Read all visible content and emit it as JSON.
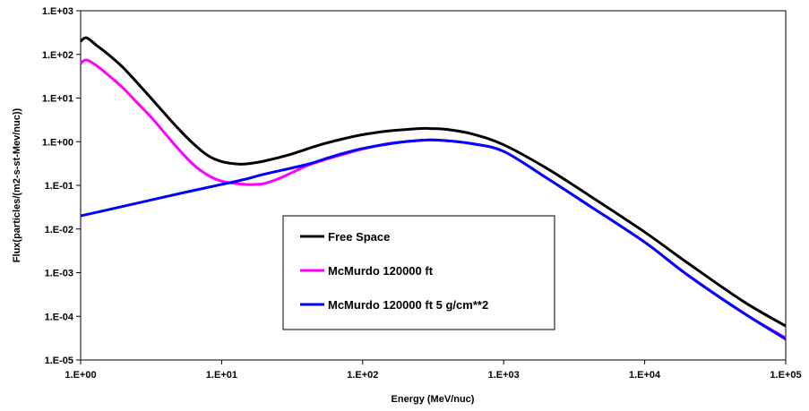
{
  "chart_data": {
    "type": "line",
    "title": "",
    "xlabel": "Energy (MeV/nuc)",
    "ylabel": "Flux(particles/(m2-s-st-Mev/nuc))",
    "xscale": "log",
    "yscale": "log",
    "xlim": [
      1,
      100000
    ],
    "ylim": [
      1e-05,
      1000
    ],
    "x_tick_labels": [
      "1.E+00",
      "1.E+01",
      "1.E+02",
      "1.E+03",
      "1.E+04",
      "1.E+05"
    ],
    "y_tick_labels": [
      "1.E-05",
      "1.E-04",
      "1.E-03",
      "1.E-02",
      "1.E-01",
      "1.E+00",
      "1.E+01",
      "1.E+02",
      "1.E+03"
    ],
    "grid": false,
    "legend_position": "center-left",
    "series": [
      {
        "name": "Free Space",
        "color": "#000000",
        "x": [
          1,
          1.1,
          1.3,
          1.6,
          2,
          2.5,
          3.2,
          4,
          5,
          6.3,
          8,
          10,
          12.6,
          15,
          20,
          30,
          50,
          80,
          100,
          150,
          250,
          300,
          400,
          600,
          1000,
          2000,
          4000,
          10000,
          20000,
          50000,
          100000
        ],
        "y": [
          200,
          240,
          160,
          95,
          50,
          23,
          9.5,
          4.2,
          1.9,
          0.9,
          0.48,
          0.35,
          0.31,
          0.31,
          0.36,
          0.5,
          0.85,
          1.25,
          1.45,
          1.75,
          2.0,
          2.0,
          1.9,
          1.5,
          0.85,
          0.25,
          0.06,
          0.0085,
          0.0017,
          0.00022,
          6e-05
        ]
      },
      {
        "name": "McMurdo 120000 ft",
        "color": "#ff00ff",
        "x": [
          1,
          1.1,
          1.3,
          1.6,
          2,
          2.5,
          3.2,
          4,
          5,
          6.3,
          8,
          10,
          12.6,
          15,
          17,
          20,
          25,
          32,
          40,
          50,
          80,
          100,
          150,
          200,
          300,
          400,
          600,
          1000,
          2000,
          4000,
          10000,
          20000,
          50000,
          100000
        ],
        "y": [
          62,
          75,
          55,
          32,
          17,
          8,
          3.5,
          1.5,
          0.65,
          0.3,
          0.17,
          0.125,
          0.11,
          0.105,
          0.105,
          0.11,
          0.14,
          0.2,
          0.28,
          0.36,
          0.56,
          0.68,
          0.9,
          1.0,
          1.1,
          1.05,
          0.9,
          0.6,
          0.15,
          0.035,
          0.005,
          0.0009,
          0.00012,
          3.2e-05
        ]
      },
      {
        "name": "McMurdo 120000 ft 5 g/cm**2",
        "color": "#0000ff",
        "x": [
          1,
          2,
          4,
          8,
          10,
          15,
          20,
          40,
          60,
          100,
          200,
          300,
          400,
          600,
          1000,
          2000,
          4000,
          10000,
          20000,
          50000,
          100000
        ],
        "y": [
          0.02,
          0.033,
          0.055,
          0.09,
          0.105,
          0.14,
          0.18,
          0.3,
          0.45,
          0.7,
          1.0,
          1.1,
          1.05,
          0.9,
          0.6,
          0.15,
          0.035,
          0.005,
          0.0009,
          0.00012,
          3e-05
        ]
      }
    ]
  }
}
